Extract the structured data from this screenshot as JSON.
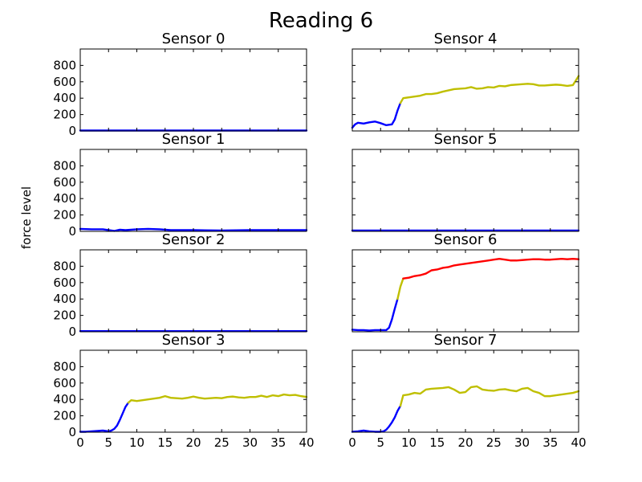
{
  "figure": {
    "title": "Reading 6",
    "ylabel": "force level"
  },
  "colors": {
    "low": "#0000ff",
    "mid": "#bfbf00",
    "high": "#ff0000"
  },
  "chart_data": [
    {
      "type": "line",
      "title": "Sensor 0",
      "xlim": [
        0,
        40
      ],
      "ylim": [
        0,
        1000
      ],
      "xticks": [
        0,
        5,
        10,
        15,
        20,
        25,
        30,
        35,
        40
      ],
      "yticks": [
        0,
        200,
        400,
        600,
        800
      ],
      "series": [
        {
          "color": "low",
          "x": [
            0,
            10,
            20,
            30,
            40
          ],
          "y": [
            5,
            5,
            5,
            5,
            5
          ]
        }
      ]
    },
    {
      "type": "line",
      "title": "Sensor 4",
      "xlim": [
        0,
        40
      ],
      "ylim": [
        0,
        1000
      ],
      "xticks": [
        0,
        5,
        10,
        15,
        20,
        25,
        30,
        35,
        40
      ],
      "yticks": [
        0,
        200,
        400,
        600,
        800
      ],
      "series": [
        {
          "color": "low",
          "x": [
            0,
            0.5,
            1,
            2,
            3,
            4,
            5,
            6,
            7,
            7.5,
            8,
            8.5
          ],
          "y": [
            40,
            80,
            100,
            90,
            105,
            115,
            95,
            70,
            80,
            140,
            250,
            340
          ]
        },
        {
          "color": "mid",
          "x": [
            8.5,
            9,
            10,
            11,
            12,
            13,
            14,
            15,
            16,
            18,
            20,
            21,
            22,
            23,
            24,
            25,
            26,
            27,
            28,
            30,
            31,
            32,
            33,
            34,
            35,
            36,
            37,
            38,
            39,
            40
          ],
          "y": [
            340,
            400,
            410,
            420,
            430,
            450,
            450,
            460,
            480,
            510,
            520,
            535,
            515,
            520,
            535,
            530,
            550,
            545,
            560,
            570,
            575,
            570,
            555,
            555,
            560,
            565,
            560,
            550,
            560,
            670
          ]
        }
      ]
    },
    {
      "type": "line",
      "title": "Sensor 1",
      "xlim": [
        0,
        40
      ],
      "ylim": [
        0,
        1000
      ],
      "xticks": [
        0,
        5,
        10,
        15,
        20,
        25,
        30,
        35,
        40
      ],
      "yticks": [
        0,
        200,
        400,
        600,
        800
      ],
      "series": [
        {
          "color": "low",
          "x": [
            0,
            2,
            4,
            5,
            6,
            7,
            8,
            10,
            12,
            14,
            16,
            20,
            25,
            30,
            35,
            40
          ],
          "y": [
            30,
            25,
            25,
            15,
            5,
            20,
            15,
            25,
            30,
            25,
            15,
            15,
            10,
            15,
            15,
            15
          ]
        }
      ]
    },
    {
      "type": "line",
      "title": "Sensor 5",
      "xlim": [
        0,
        40
      ],
      "ylim": [
        0,
        1000
      ],
      "xticks": [
        0,
        5,
        10,
        15,
        20,
        25,
        30,
        35,
        40
      ],
      "yticks": [
        0,
        200,
        400,
        600,
        800
      ],
      "series": [
        {
          "color": "low",
          "x": [
            0,
            10,
            20,
            30,
            40
          ],
          "y": [
            10,
            10,
            10,
            10,
            10
          ]
        }
      ]
    },
    {
      "type": "line",
      "title": "Sensor 2",
      "xlim": [
        0,
        40
      ],
      "ylim": [
        0,
        1000
      ],
      "xticks": [
        0,
        5,
        10,
        15,
        20,
        25,
        30,
        35,
        40
      ],
      "yticks": [
        0,
        200,
        400,
        600,
        800
      ],
      "series": [
        {
          "color": "low",
          "x": [
            0,
            10,
            20,
            30,
            40
          ],
          "y": [
            8,
            8,
            8,
            8,
            8
          ]
        }
      ]
    },
    {
      "type": "line",
      "title": "Sensor 6",
      "xlim": [
        0,
        40
      ],
      "ylim": [
        0,
        1000
      ],
      "xticks": [
        0,
        5,
        10,
        15,
        20,
        25,
        30,
        35,
        40
      ],
      "yticks": [
        0,
        200,
        400,
        600,
        800
      ],
      "series": [
        {
          "color": "low",
          "x": [
            0,
            1,
            2,
            3,
            4,
            5,
            6,
            6.5,
            7,
            7.5,
            8
          ],
          "y": [
            25,
            20,
            20,
            15,
            20,
            20,
            20,
            50,
            150,
            280,
            400
          ]
        },
        {
          "color": "mid",
          "x": [
            8,
            8.5,
            9
          ],
          "y": [
            400,
            550,
            650
          ]
        },
        {
          "color": "high",
          "x": [
            9,
            10,
            11,
            12,
            13,
            14,
            15,
            16,
            17,
            18,
            19,
            20,
            21,
            22,
            23,
            24,
            25,
            26,
            27,
            28,
            29,
            30,
            31,
            32,
            33,
            34,
            35,
            36,
            37,
            38,
            39,
            40
          ],
          "y": [
            650,
            660,
            680,
            690,
            710,
            750,
            760,
            780,
            790,
            810,
            820,
            830,
            840,
            850,
            860,
            870,
            880,
            890,
            880,
            870,
            870,
            875,
            880,
            885,
            885,
            880,
            880,
            885,
            890,
            885,
            890,
            885
          ]
        }
      ]
    },
    {
      "type": "line",
      "title": "Sensor 3",
      "xlim": [
        0,
        40
      ],
      "ylim": [
        0,
        1000
      ],
      "xticks": [
        0,
        5,
        10,
        15,
        20,
        25,
        30,
        35,
        40
      ],
      "yticks": [
        0,
        200,
        400,
        600,
        800
      ],
      "series": [
        {
          "color": "low",
          "x": [
            0,
            1,
            2,
            3,
            4,
            5,
            5.5,
            6,
            6.5,
            7,
            7.5,
            8,
            8.5
          ],
          "y": [
            5,
            5,
            10,
            15,
            20,
            10,
            20,
            40,
            80,
            150,
            230,
            310,
            360
          ]
        },
        {
          "color": "mid",
          "x": [
            8.5,
            9,
            10,
            11,
            12,
            13,
            14,
            15,
            16,
            17,
            18,
            19,
            20,
            21,
            22,
            23,
            24,
            25,
            26,
            27,
            28,
            29,
            30,
            31,
            32,
            33,
            34,
            35,
            36,
            37,
            38,
            39,
            40
          ],
          "y": [
            360,
            390,
            380,
            390,
            400,
            410,
            420,
            440,
            420,
            415,
            410,
            420,
            435,
            420,
            410,
            415,
            420,
            415,
            430,
            435,
            425,
            420,
            430,
            430,
            445,
            430,
            450,
            440,
            460,
            450,
            455,
            440,
            430
          ]
        }
      ]
    },
    {
      "type": "line",
      "title": "Sensor 7",
      "xlim": [
        0,
        40
      ],
      "ylim": [
        0,
        1000
      ],
      "xticks": [
        0,
        5,
        10,
        15,
        20,
        25,
        30,
        35,
        40
      ],
      "yticks": [
        0,
        200,
        400,
        600,
        800
      ],
      "series": [
        {
          "color": "low",
          "x": [
            0,
            1,
            2,
            3,
            4,
            5,
            5.5,
            6,
            6.5,
            7,
            7.5,
            8,
            8.5
          ],
          "y": [
            5,
            10,
            20,
            10,
            5,
            5,
            10,
            30,
            70,
            120,
            180,
            260,
            320
          ]
        },
        {
          "color": "mid",
          "x": [
            8.5,
            9,
            10,
            11,
            12,
            13,
            14,
            15,
            16,
            17,
            18,
            19,
            20,
            21,
            22,
            23,
            24,
            25,
            26,
            27,
            28,
            29,
            30,
            31,
            32,
            33,
            34,
            35,
            36,
            37,
            38,
            39,
            40
          ],
          "y": [
            320,
            450,
            460,
            480,
            470,
            520,
            530,
            535,
            540,
            550,
            520,
            480,
            490,
            550,
            560,
            520,
            510,
            505,
            520,
            525,
            510,
            500,
            530,
            540,
            500,
            480,
            440,
            440,
            450,
            460,
            470,
            480,
            500
          ]
        }
      ]
    }
  ]
}
